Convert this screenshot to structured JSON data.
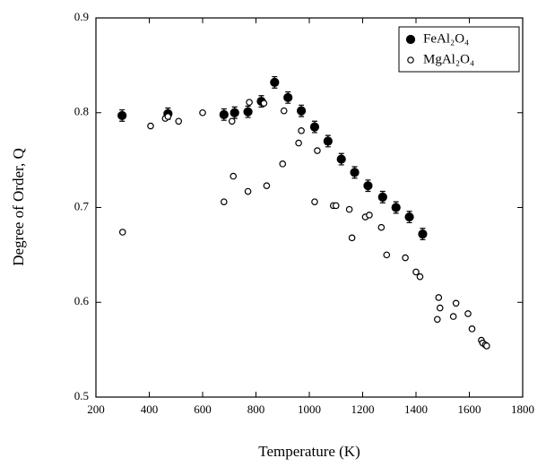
{
  "chart_data": {
    "type": "scatter",
    "x_label": "Temperature (K)",
    "y_label": "Degree of Order, Q",
    "xlim": [
      200,
      1800
    ],
    "ylim": [
      0.5,
      0.9
    ],
    "xticks": [
      200,
      400,
      600,
      800,
      1000,
      1200,
      1400,
      1600,
      1800
    ],
    "yticks": [
      0.5,
      0.6,
      0.7,
      0.8,
      0.9
    ],
    "legend": "upper right",
    "series": [
      {
        "name": "FeAl₂O₄",
        "color": "#000",
        "marker": "filled",
        "x": [
          298,
          470,
          680,
          720,
          770,
          820,
          870,
          920,
          970,
          1020,
          1070,
          1120,
          1170,
          1220,
          1275,
          1325,
          1375,
          1425
        ],
        "values": [
          0.797,
          0.799,
          0.798,
          0.8,
          0.801,
          0.812,
          0.832,
          0.816,
          0.802,
          0.785,
          0.77,
          0.751,
          0.737,
          0.723,
          0.711,
          0.7,
          0.69,
          0.672
        ],
        "errors": [
          0.006,
          0.006,
          0.006,
          0.006,
          0.006,
          0.006,
          0.006,
          0.006,
          0.006,
          0.006,
          0.006,
          0.006,
          0.006,
          0.006,
          0.006,
          0.006,
          0.006,
          0.006
        ]
      },
      {
        "name": "MgAl₂O₄",
        "color": "#000",
        "marker": "open",
        "x": [
          300,
          405,
          460,
          470,
          510,
          600,
          680,
          710,
          715,
          770,
          775,
          830,
          840,
          900,
          905,
          960,
          970,
          1020,
          1030,
          1090,
          1100,
          1150,
          1160,
          1210,
          1225,
          1270,
          1290,
          1360,
          1400,
          1415,
          1480,
          1485,
          1490,
          1540,
          1550,
          1595,
          1610,
          1645,
          1650,
          1660,
          1665
        ],
        "values": [
          0.674,
          0.786,
          0.794,
          0.796,
          0.791,
          0.8,
          0.706,
          0.791,
          0.733,
          0.717,
          0.811,
          0.81,
          0.723,
          0.746,
          0.802,
          0.768,
          0.781,
          0.706,
          0.76,
          0.702,
          0.702,
          0.698,
          0.668,
          0.69,
          0.692,
          0.679,
          0.65,
          0.647,
          0.632,
          0.627,
          0.582,
          0.605,
          0.594,
          0.585,
          0.599,
          0.588,
          0.572,
          0.56,
          0.557,
          0.555,
          0.554
        ]
      }
    ]
  }
}
